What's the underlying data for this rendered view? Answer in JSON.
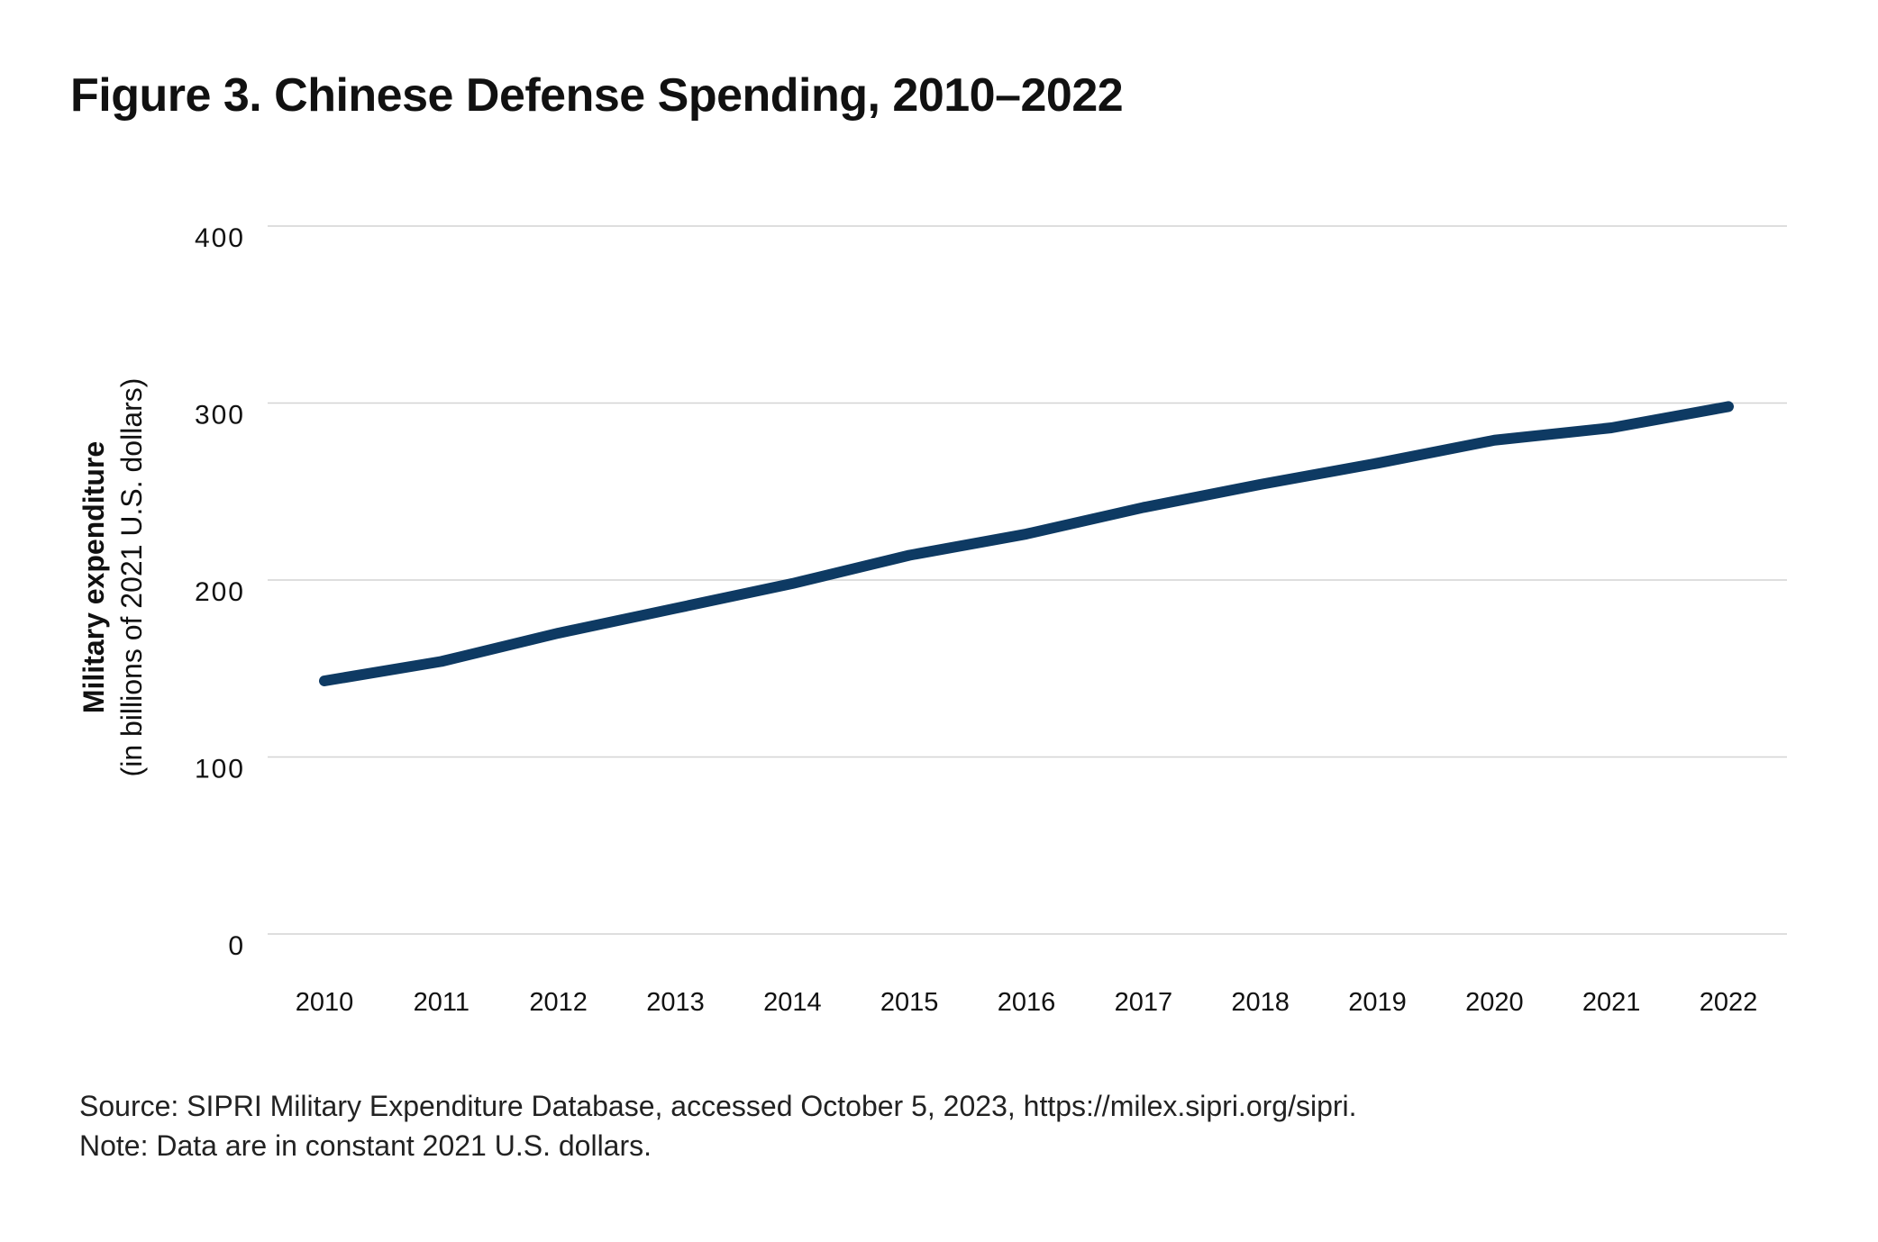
{
  "chart_data": {
    "type": "line",
    "title": "Figure 3. Chinese Defense Spending, 2010–2022",
    "ylabel": "Military expenditure",
    "ylabel_sub": "(in billions of 2021 U.S. dollars)",
    "xlabel": "",
    "x": [
      "2010",
      "2011",
      "2012",
      "2013",
      "2014",
      "2015",
      "2016",
      "2017",
      "2018",
      "2019",
      "2020",
      "2021",
      "2022"
    ],
    "series": [
      {
        "values": [
          143,
          154,
          170,
          184,
          198,
          214,
          226,
          241,
          254,
          266,
          279,
          286,
          298
        ],
        "color": "#0e3a63"
      }
    ],
    "ylim": [
      0,
      400
    ],
    "yticks": [
      0,
      100,
      200,
      300,
      400
    ],
    "grid": true,
    "legend": "none"
  },
  "footer": {
    "source": "Source: SIPRI Military Expenditure Database, accessed October 5, 2023, https://milex.sipri.org/sipri.",
    "note": "Note: Data are in constant 2021 U.S. dollars."
  }
}
